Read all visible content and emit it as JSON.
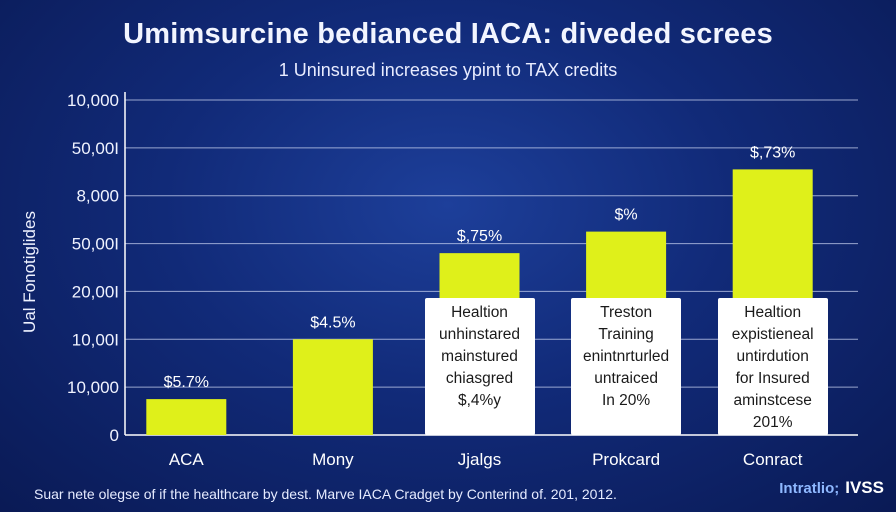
{
  "title": "Umimsurcine bedianced IACA: diveded screes",
  "subtitle": "1 Uninsured increases ypint to TAX credits",
  "ylabel": "Ual Fonotiglides",
  "footnote": "Suar nete olegse of if the healthcare by dest. Marve IACA Cradget by Conterind of. 201, 2012.",
  "brand": {
    "text": "Intratlio;",
    "logo": "IVSS"
  },
  "colors": {
    "bar": "#dff01a",
    "grid": "#c8d2f0",
    "axis": "#ffffff",
    "annotation_bg": "#ffffff"
  },
  "chart_data": {
    "type": "bar",
    "title": "Umimsurcine bedianced IACA: diveded screes",
    "subtitle": "1 Uninsured increases ypint to TAX credits",
    "xlabel": "",
    "ylabel": "Ual Fonotiglides",
    "y_tick_labels": [
      "0",
      "10,000",
      "10,00I",
      "20,00I",
      "50,00I",
      "8,000",
      "50,00I",
      "10,000"
    ],
    "ylim": [
      0,
      7
    ],
    "grid": true,
    "categories": [
      "ACA",
      "Mony",
      "Jjalgs",
      "Prokcard",
      "Conract"
    ],
    "values": [
      0.75,
      2.0,
      3.8,
      4.25,
      5.55
    ],
    "value_labels": [
      "$5.7%",
      "$4.5%",
      "$,75%",
      "$%",
      "$,73%"
    ],
    "annotations": [
      null,
      null,
      [
        "Healtion",
        "unhinstared",
        "mainstured",
        "chiasgred",
        "$,4%y"
      ],
      [
        "Treston",
        "Training",
        "enintnrturled",
        "untraiced",
        "In 20%"
      ],
      [
        "Healtion",
        "expistieneal",
        "untirdution",
        "for Insured",
        "aminstcese",
        "201%"
      ]
    ]
  }
}
